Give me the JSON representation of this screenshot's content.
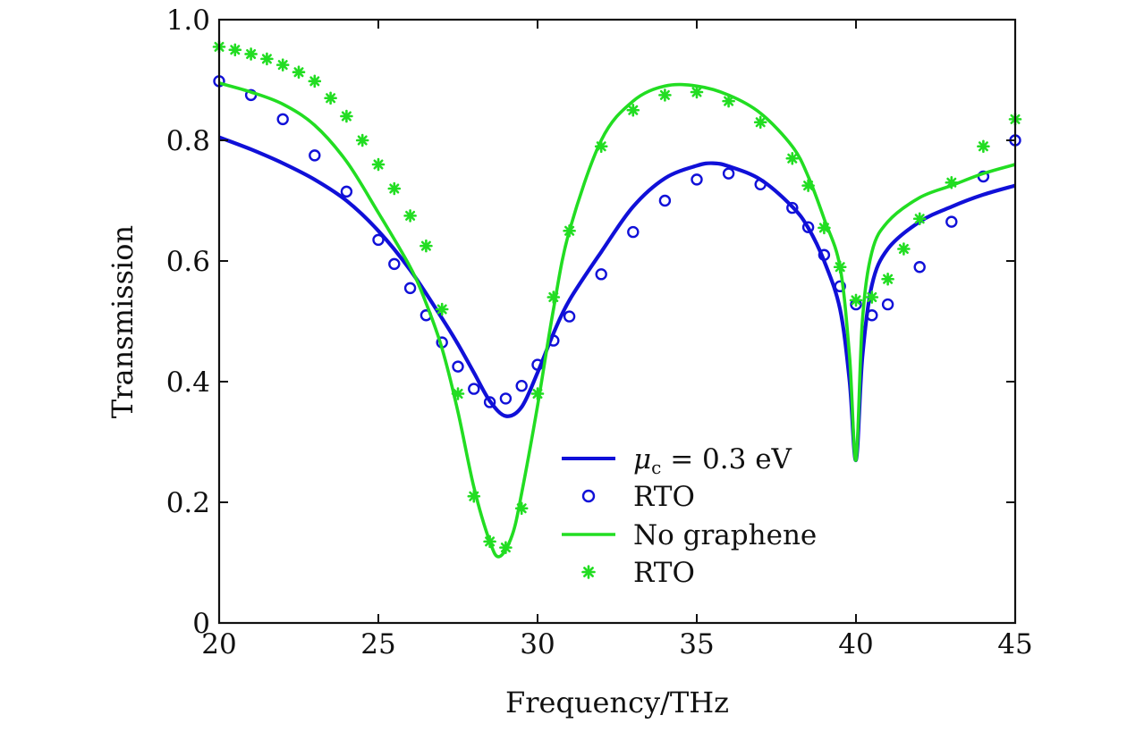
{
  "colors": {
    "blue": "#1010d8",
    "green": "#22dd22",
    "axis": "#111111",
    "background": "#ffffff"
  },
  "chart_data": {
    "type": "line",
    "xlabel": "Frequency/THz",
    "ylabel": "Transmission",
    "xlim": [
      20,
      45
    ],
    "ylim": [
      0,
      1.0
    ],
    "xticks": [
      20,
      25,
      30,
      35,
      40,
      45
    ],
    "xtick_labels": [
      "20",
      "25",
      "30",
      "35",
      "40",
      "45"
    ],
    "yticks": [
      0,
      0.2,
      0.4,
      0.6,
      0.8,
      1.0
    ],
    "ytick_labels": [
      "0",
      "0.2",
      "0.4",
      "0.6",
      "0.8",
      "1.0"
    ],
    "grid": false,
    "legend_position": "bottom-right",
    "series": [
      {
        "name": "μc = 0.3 eV",
        "legend_symbol": "μ",
        "legend_subscript": "c",
        "legend_rest": " = 0.3 eV",
        "style": "line",
        "color": "blue",
        "points": [
          [
            20,
            0.805
          ],
          [
            21,
            0.785
          ],
          [
            22,
            0.762
          ],
          [
            23,
            0.735
          ],
          [
            24,
            0.7
          ],
          [
            25,
            0.65
          ],
          [
            26,
            0.585
          ],
          [
            27,
            0.505
          ],
          [
            27.5,
            0.462
          ],
          [
            28,
            0.415
          ],
          [
            28.5,
            0.368
          ],
          [
            29,
            0.343
          ],
          [
            29.5,
            0.358
          ],
          [
            30,
            0.415
          ],
          [
            30.5,
            0.48
          ],
          [
            31,
            0.535
          ],
          [
            32,
            0.615
          ],
          [
            33,
            0.69
          ],
          [
            34,
            0.737
          ],
          [
            35,
            0.758
          ],
          [
            35.5,
            0.762
          ],
          [
            36,
            0.757
          ],
          [
            37,
            0.735
          ],
          [
            38,
            0.69
          ],
          [
            38.5,
            0.655
          ],
          [
            39,
            0.6
          ],
          [
            39.5,
            0.52
          ],
          [
            39.8,
            0.4
          ],
          [
            40,
            0.27
          ],
          [
            40.2,
            0.44
          ],
          [
            40.5,
            0.56
          ],
          [
            41,
            0.62
          ],
          [
            42,
            0.665
          ],
          [
            43,
            0.69
          ],
          [
            44,
            0.71
          ],
          [
            45,
            0.725
          ]
        ]
      },
      {
        "name": "RTO",
        "style": "circle",
        "color": "blue",
        "points": [
          [
            20,
            0.898
          ],
          [
            21,
            0.875
          ],
          [
            22,
            0.835
          ],
          [
            23,
            0.775
          ],
          [
            24,
            0.715
          ],
          [
            25,
            0.635
          ],
          [
            25.5,
            0.595
          ],
          [
            26,
            0.555
          ],
          [
            26.5,
            0.51
          ],
          [
            27,
            0.465
          ],
          [
            27.5,
            0.425
          ],
          [
            28,
            0.388
          ],
          [
            28.5,
            0.366
          ],
          [
            29,
            0.372
          ],
          [
            29.5,
            0.393
          ],
          [
            30,
            0.428
          ],
          [
            30.5,
            0.468
          ],
          [
            31,
            0.508
          ],
          [
            32,
            0.578
          ],
          [
            33,
            0.648
          ],
          [
            34,
            0.7
          ],
          [
            35,
            0.735
          ],
          [
            36,
            0.745
          ],
          [
            37,
            0.727
          ],
          [
            38,
            0.688
          ],
          [
            38.5,
            0.656
          ],
          [
            39,
            0.61
          ],
          [
            39.5,
            0.558
          ],
          [
            40,
            0.528
          ],
          [
            40.5,
            0.51
          ],
          [
            41,
            0.528
          ],
          [
            42,
            0.59
          ],
          [
            43,
            0.665
          ],
          [
            44,
            0.74
          ],
          [
            45,
            0.8
          ]
        ]
      },
      {
        "name": "No graphene",
        "style": "line",
        "color": "green",
        "points": [
          [
            20,
            0.895
          ],
          [
            21,
            0.88
          ],
          [
            22,
            0.86
          ],
          [
            23,
            0.825
          ],
          [
            24,
            0.765
          ],
          [
            25,
            0.68
          ],
          [
            26,
            0.59
          ],
          [
            26.5,
            0.53
          ],
          [
            27,
            0.455
          ],
          [
            27.5,
            0.35
          ],
          [
            28,
            0.225
          ],
          [
            28.5,
            0.135
          ],
          [
            28.8,
            0.11
          ],
          [
            29.2,
            0.145
          ],
          [
            29.5,
            0.215
          ],
          [
            30,
            0.36
          ],
          [
            30.5,
            0.52
          ],
          [
            31,
            0.65
          ],
          [
            32,
            0.8
          ],
          [
            33,
            0.865
          ],
          [
            34,
            0.89
          ],
          [
            35,
            0.89
          ],
          [
            36,
            0.875
          ],
          [
            37,
            0.845
          ],
          [
            38,
            0.79
          ],
          [
            38.5,
            0.74
          ],
          [
            39,
            0.67
          ],
          [
            39.5,
            0.59
          ],
          [
            39.8,
            0.44
          ],
          [
            40,
            0.27
          ],
          [
            40.2,
            0.5
          ],
          [
            40.5,
            0.615
          ],
          [
            41,
            0.665
          ],
          [
            42,
            0.705
          ],
          [
            43,
            0.725
          ],
          [
            44,
            0.745
          ],
          [
            45,
            0.76
          ]
        ]
      },
      {
        "name": "RTO",
        "style": "star",
        "color": "green",
        "points": [
          [
            20,
            0.955
          ],
          [
            20.5,
            0.95
          ],
          [
            21,
            0.943
          ],
          [
            21.5,
            0.935
          ],
          [
            22,
            0.925
          ],
          [
            22.5,
            0.913
          ],
          [
            23,
            0.898
          ],
          [
            23.5,
            0.87
          ],
          [
            24,
            0.84
          ],
          [
            24.5,
            0.8
          ],
          [
            25,
            0.76
          ],
          [
            25.5,
            0.72
          ],
          [
            26,
            0.675
          ],
          [
            26.5,
            0.625
          ],
          [
            27,
            0.52
          ],
          [
            27.5,
            0.38
          ],
          [
            28,
            0.21
          ],
          [
            28.5,
            0.135
          ],
          [
            29,
            0.125
          ],
          [
            29.5,
            0.19
          ],
          [
            30,
            0.38
          ],
          [
            30.5,
            0.54
          ],
          [
            31,
            0.65
          ],
          [
            32,
            0.79
          ],
          [
            33,
            0.85
          ],
          [
            34,
            0.875
          ],
          [
            35,
            0.88
          ],
          [
            36,
            0.865
          ],
          [
            37,
            0.83
          ],
          [
            38,
            0.77
          ],
          [
            38.5,
            0.725
          ],
          [
            39,
            0.655
          ],
          [
            39.5,
            0.59
          ],
          [
            40,
            0.535
          ],
          [
            40.5,
            0.54
          ],
          [
            41,
            0.57
          ],
          [
            41.5,
            0.62
          ],
          [
            42,
            0.67
          ],
          [
            43,
            0.73
          ],
          [
            44,
            0.79
          ],
          [
            45,
            0.835
          ]
        ]
      }
    ]
  }
}
